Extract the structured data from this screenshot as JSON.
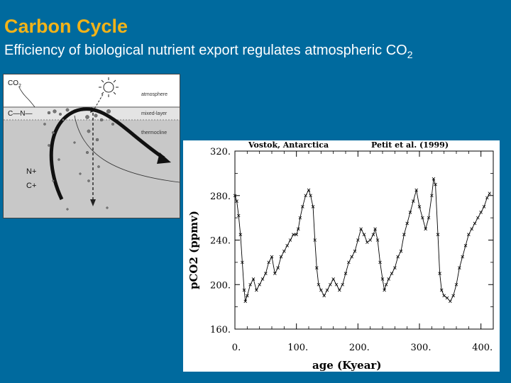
{
  "slide": {
    "title": "Carbon Cycle",
    "subtitle_main": "Efficiency of biological nutrient export regulates atmospheric CO",
    "subtitle_sub": "2"
  },
  "colors": {
    "background": "#006a9e",
    "title": "#f2b318",
    "subtitle": "#ffffff"
  },
  "diagram": {
    "co2_label": "CO",
    "co2_sub": "2",
    "cn_label": "C—N—",
    "n_plus": "N+",
    "c_plus": "C+",
    "atmosphere": "atmosphere",
    "mixed_layer": "mixed-layer",
    "thermocline": "thermocline",
    "sun_icon": "sun-icon"
  },
  "chart_data": {
    "type": "line",
    "location_label": "Vostok, Antarctica",
    "source_label": "Petit et al. (1999)",
    "xlabel": "age (Kyear)",
    "ylabel": "pCO2 (ppmv)",
    "xlim": [
      0,
      420
    ],
    "ylim": [
      160,
      320
    ],
    "xticks": [
      0,
      100,
      200,
      300,
      400
    ],
    "xtick_labels": [
      "0.",
      "100.",
      "200.",
      "300.",
      "400."
    ],
    "yticks": [
      160,
      200,
      240,
      280,
      320
    ],
    "ytick_labels": [
      "160.",
      "200.",
      "240.",
      "280.",
      "320."
    ],
    "series": [
      {
        "x": [
          0,
          3,
          6,
          9,
          12,
          15,
          17,
          20,
          25,
          30,
          35,
          40,
          45,
          50,
          55,
          60,
          65,
          70,
          75,
          80,
          85,
          90,
          95,
          100,
          103,
          106,
          110,
          115,
          120,
          123,
          127,
          130,
          133,
          136,
          140,
          145,
          150,
          155,
          160,
          165,
          170,
          175,
          180,
          185,
          190,
          195,
          200,
          205,
          210,
          215,
          220,
          225,
          228,
          232,
          236,
          240,
          243,
          246,
          250,
          255,
          260,
          265,
          270,
          275,
          280,
          285,
          290,
          295,
          300,
          305,
          310,
          315,
          320,
          323,
          326,
          330,
          333,
          336,
          340,
          345,
          350,
          355,
          360,
          365,
          370,
          375,
          380,
          385,
          390,
          395,
          400,
          405,
          410,
          414
        ],
        "y": [
          280,
          275,
          262,
          245,
          220,
          195,
          185,
          190,
          200,
          205,
          195,
          200,
          205,
          210,
          220,
          225,
          210,
          215,
          225,
          230,
          235,
          240,
          245,
          245,
          250,
          260,
          270,
          280,
          285,
          280,
          270,
          240,
          215,
          200,
          195,
          190,
          195,
          200,
          205,
          200,
          195,
          200,
          210,
          220,
          225,
          230,
          240,
          250,
          245,
          238,
          240,
          245,
          250,
          240,
          220,
          205,
          195,
          200,
          205,
          210,
          215,
          225,
          230,
          245,
          255,
          265,
          275,
          285,
          270,
          260,
          250,
          260,
          280,
          295,
          290,
          245,
          210,
          195,
          190,
          188,
          185,
          190,
          200,
          215,
          225,
          235,
          245,
          250,
          255,
          260,
          265,
          270,
          278,
          282
        ]
      }
    ],
    "grid": false
  }
}
